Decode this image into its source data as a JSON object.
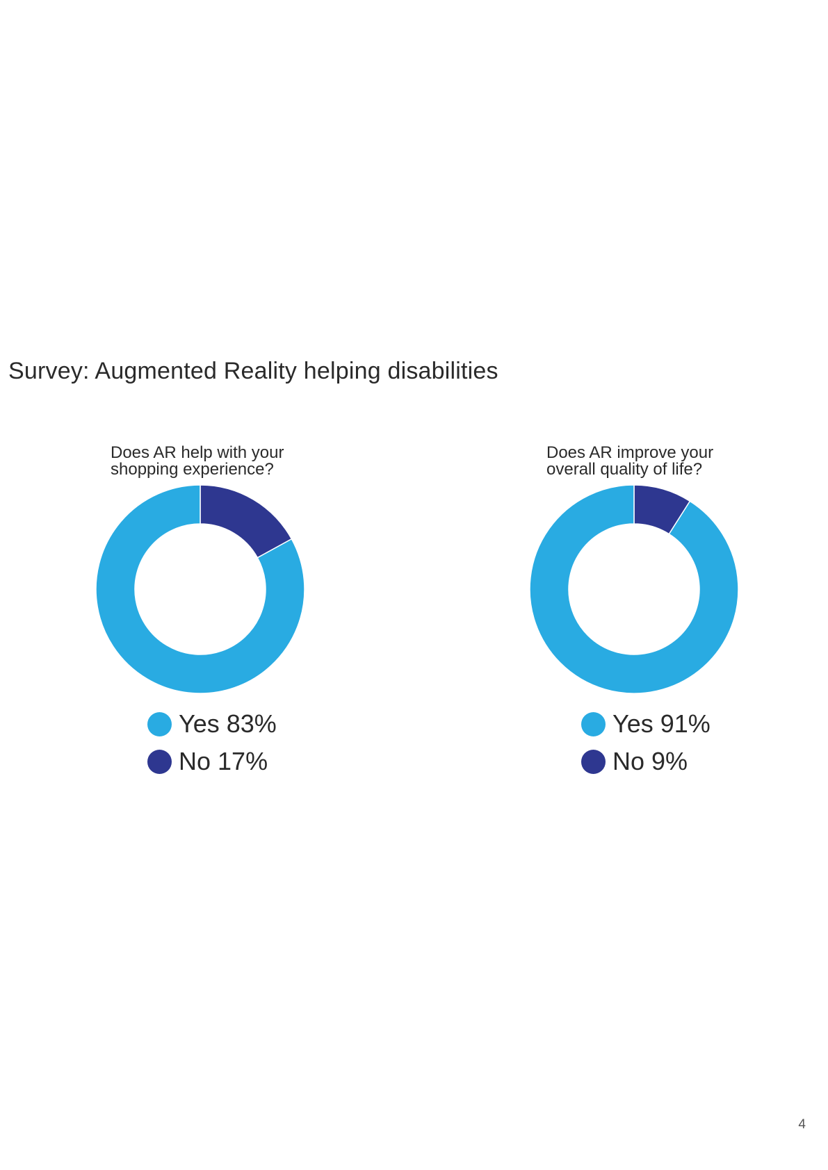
{
  "page": {
    "title": "Survey: Augmented Reality helping disabilities",
    "page_number": "4"
  },
  "colors": {
    "yes": "#29abe2",
    "no": "#2e3790"
  },
  "chart_data": [
    {
      "type": "pie",
      "title_lines": [
        "Does AR help with your",
        "shopping experience?"
      ],
      "categories": [
        "Yes",
        "No"
      ],
      "values": [
        83,
        17
      ],
      "legend": [
        "Yes 83%",
        "No 17%"
      ]
    },
    {
      "type": "pie",
      "title_lines": [
        "Does AR improve your",
        "overall quality of life?"
      ],
      "categories": [
        "Yes",
        "No"
      ],
      "values": [
        91,
        9
      ],
      "legend": [
        "Yes 91%",
        "No 9%"
      ]
    }
  ]
}
